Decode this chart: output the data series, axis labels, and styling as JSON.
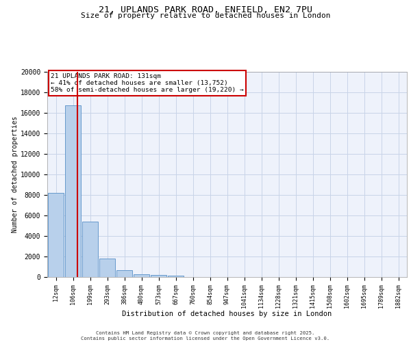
{
  "title1": "21, UPLANDS PARK ROAD, ENFIELD, EN2 7PU",
  "title2": "Size of property relative to detached houses in London",
  "xlabel": "Distribution of detached houses by size in London",
  "ylabel": "Number of detached properties",
  "categories": [
    "12sqm",
    "106sqm",
    "199sqm",
    "293sqm",
    "386sqm",
    "480sqm",
    "573sqm",
    "667sqm",
    "760sqm",
    "854sqm",
    "947sqm",
    "1041sqm",
    "1134sqm",
    "1228sqm",
    "1321sqm",
    "1415sqm",
    "1508sqm",
    "1602sqm",
    "1695sqm",
    "1789sqm",
    "1882sqm"
  ],
  "bar_heights": [
    8200,
    16700,
    5400,
    1800,
    700,
    300,
    180,
    150,
    0,
    0,
    0,
    0,
    0,
    0,
    0,
    0,
    0,
    0,
    0,
    0,
    0
  ],
  "bar_color": "#b8d0eb",
  "bar_edge_color": "#6699cc",
  "vline_color": "#cc0000",
  "annotation_text": "21 UPLANDS PARK ROAD: 131sqm\n← 41% of detached houses are smaller (13,752)\n58% of semi-detached houses are larger (19,220) →",
  "annotation_box_color": "#cc0000",
  "ylim": [
    0,
    20000
  ],
  "yticks": [
    0,
    2000,
    4000,
    6000,
    8000,
    10000,
    12000,
    14000,
    16000,
    18000,
    20000
  ],
  "footer1": "Contains HM Land Registry data © Crown copyright and database right 2025.",
  "footer2": "Contains public sector information licensed under the Open Government Licence v3.0.",
  "bg_color": "#eef2fb",
  "grid_color": "#c8d4e8"
}
